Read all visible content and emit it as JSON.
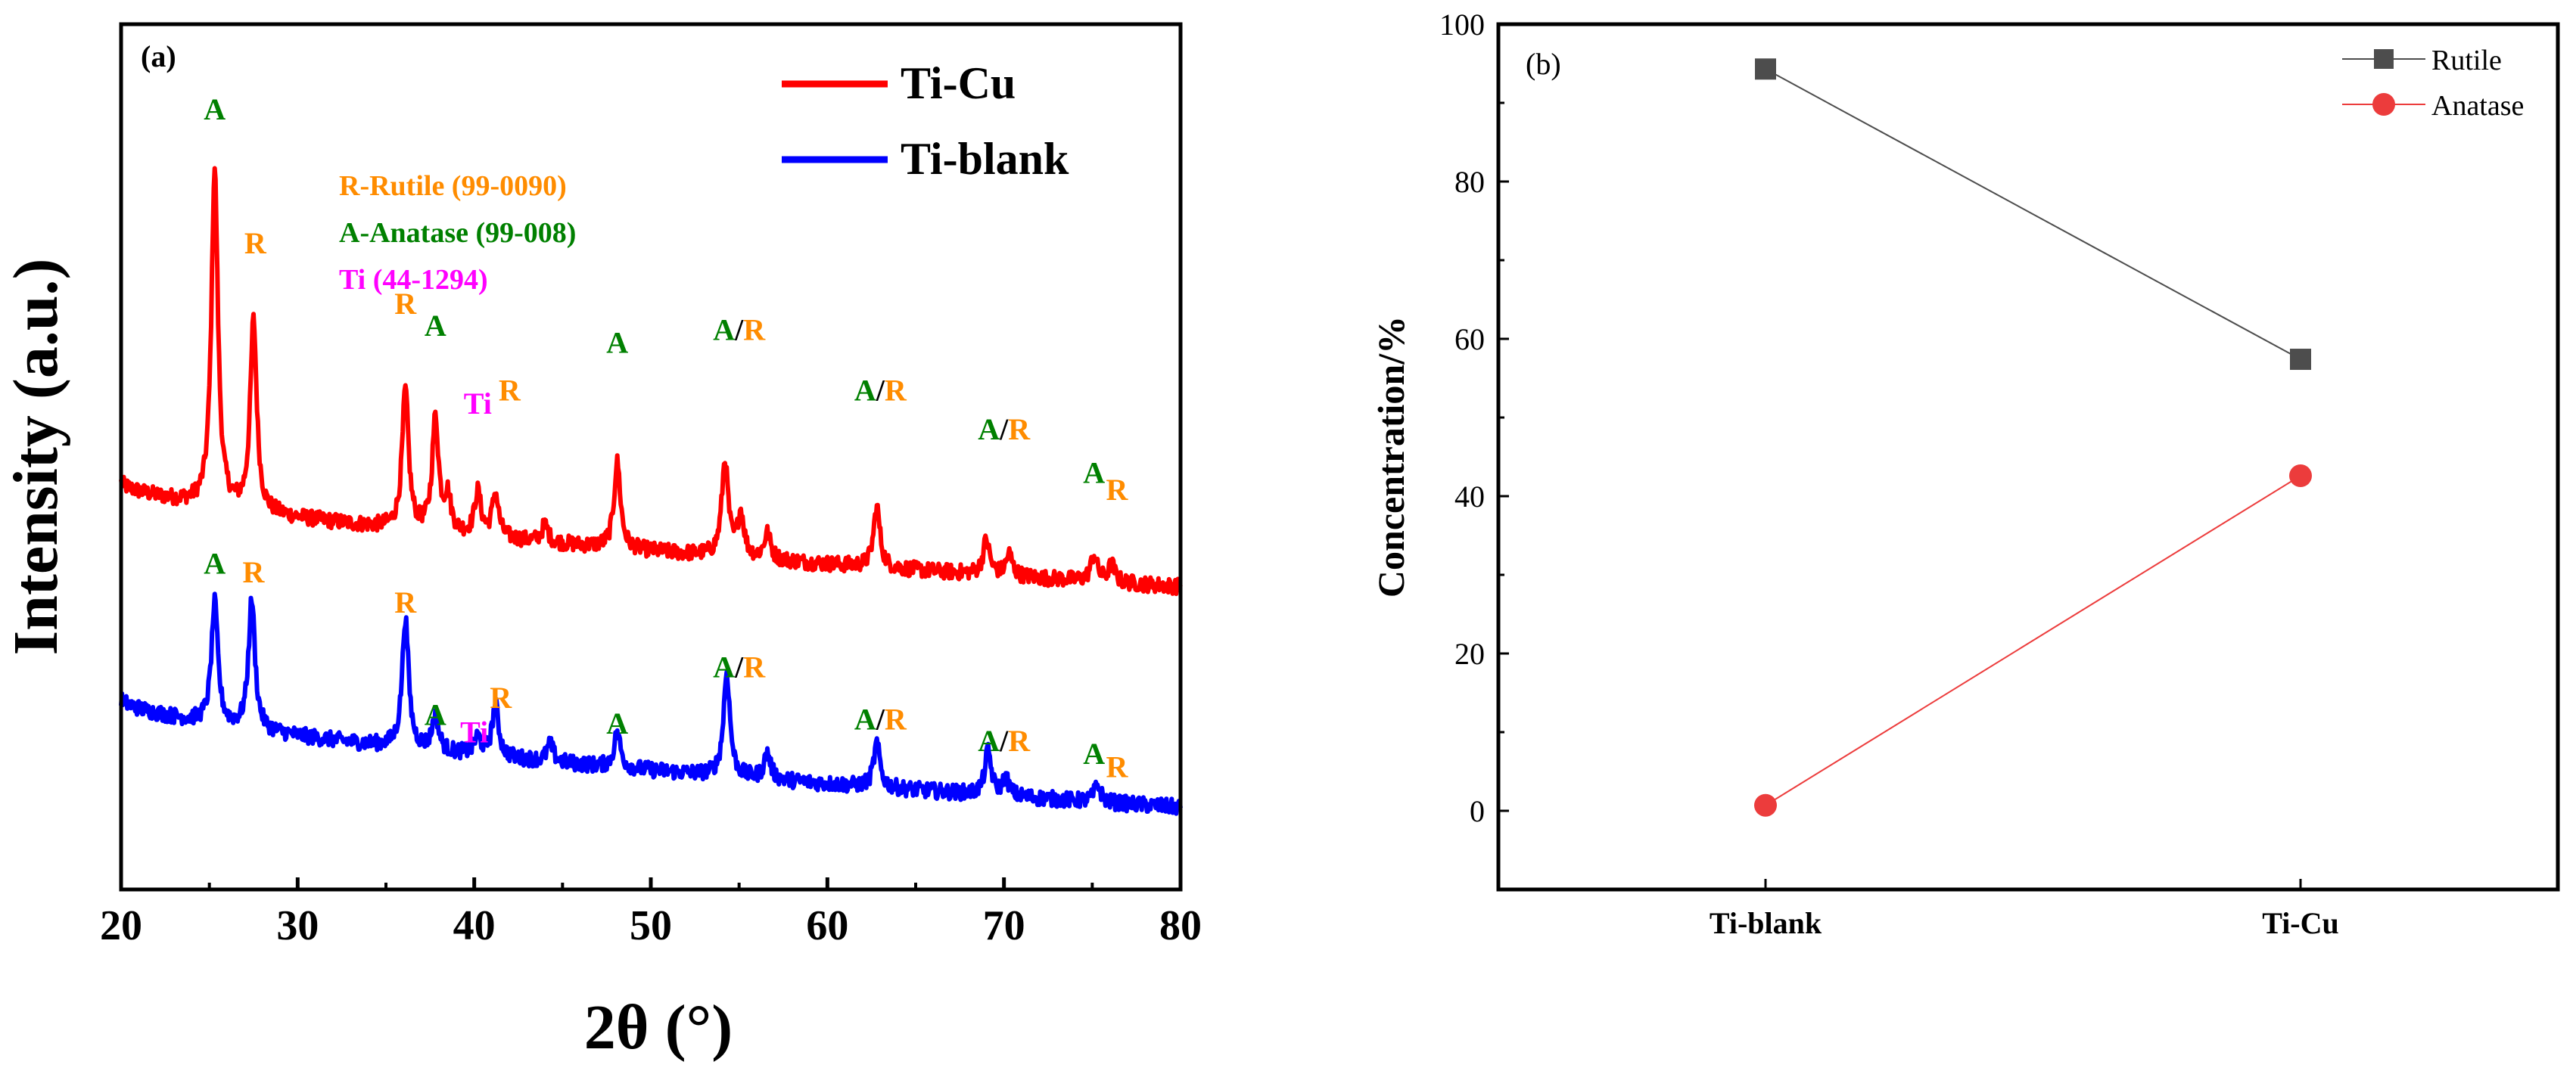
{
  "chart_data": [
    {
      "panel": "(a)",
      "type": "line",
      "xlabel": "2θ (°)",
      "ylabel": "Intensity (a.u.)",
      "xlim": [
        20,
        80
      ],
      "xticks": [
        "20",
        "30",
        "40",
        "50",
        "60",
        "70",
        "80"
      ],
      "ylim": [
        0,
        1
      ],
      "legend": "top-right",
      "series": [
        {
          "name": "Ti-Cu",
          "color": "#ff0000",
          "baseline_start": 0.47,
          "baseline_end": 0.35,
          "peaks": [
            {
              "x": 25.3,
              "height": 0.39
            },
            {
              "x": 27.5,
              "height": 0.22
            },
            {
              "x": 36.1,
              "height": 0.16
            },
            {
              "x": 37.8,
              "height": 0.13
            },
            {
              "x": 38.5,
              "height": 0.04
            },
            {
              "x": 40.2,
              "height": 0.05
            },
            {
              "x": 41.2,
              "height": 0.05
            },
            {
              "x": 44.0,
              "height": 0.02
            },
            {
              "x": 48.1,
              "height": 0.1
            },
            {
              "x": 54.2,
              "height": 0.11
            },
            {
              "x": 55.1,
              "height": 0.05
            },
            {
              "x": 56.6,
              "height": 0.03
            },
            {
              "x": 62.8,
              "height": 0.07
            },
            {
              "x": 69.0,
              "height": 0.04
            },
            {
              "x": 70.3,
              "height": 0.025
            },
            {
              "x": 75.1,
              "height": 0.03
            },
            {
              "x": 76.1,
              "height": 0.02
            }
          ]
        },
        {
          "name": "Ti-blank",
          "color": "#0000ff",
          "baseline_start": 0.22,
          "baseline_end": 0.095,
          "peaks": [
            {
              "x": 25.3,
              "height": 0.14
            },
            {
              "x": 27.4,
              "height": 0.15
            },
            {
              "x": 36.1,
              "height": 0.15
            },
            {
              "x": 37.8,
              "height": 0.04
            },
            {
              "x": 40.2,
              "height": 0.02
            },
            {
              "x": 41.2,
              "height": 0.06
            },
            {
              "x": 44.3,
              "height": 0.02
            },
            {
              "x": 48.1,
              "height": 0.04
            },
            {
              "x": 54.3,
              "height": 0.12
            },
            {
              "x": 56.6,
              "height": 0.03
            },
            {
              "x": 62.8,
              "height": 0.05
            },
            {
              "x": 69.1,
              "height": 0.05
            },
            {
              "x": 70.1,
              "height": 0.02
            },
            {
              "x": 75.3,
              "height": 0.02
            }
          ]
        }
      ],
      "reference_legend": [
        {
          "text": "R-Rutile (99-0090)",
          "color": "#ff8c00"
        },
        {
          "text": "A-Anatase (99-008)",
          "color": "#008000"
        },
        {
          "text": "Ti (44-1294)",
          "color": "#ff00ff"
        }
      ],
      "annotations": [
        {
          "series": "Ti-Cu",
          "x": 25.3,
          "y": 0.89,
          "parts": [
            {
              "t": "A",
              "c": "#008000"
            }
          ]
        },
        {
          "series": "Ti-Cu",
          "x": 27.6,
          "y": 0.735,
          "parts": [
            {
              "t": "R",
              "c": "#ff8c00"
            }
          ]
        },
        {
          "series": "Ti-Cu",
          "x": 36.1,
          "y": 0.665,
          "parts": [
            {
              "t": "R",
              "c": "#ff8c00"
            }
          ]
        },
        {
          "series": "Ti-Cu",
          "x": 37.8,
          "y": 0.64,
          "parts": [
            {
              "t": "A",
              "c": "#008000"
            }
          ]
        },
        {
          "series": "Ti-Cu",
          "x": 40.2,
          "y": 0.55,
          "parts": [
            {
              "t": "Ti",
              "c": "#ff00ff"
            }
          ]
        },
        {
          "series": "Ti-Cu",
          "x": 42.0,
          "y": 0.565,
          "parts": [
            {
              "t": "R",
              "c": "#ff8c00"
            }
          ]
        },
        {
          "series": "Ti-Cu",
          "x": 48.1,
          "y": 0.62,
          "parts": [
            {
              "t": "A",
              "c": "#008000"
            }
          ]
        },
        {
          "series": "Ti-Cu",
          "x": 55.0,
          "y": 0.635,
          "parts": [
            {
              "t": "A",
              "c": "#008000"
            },
            {
              "t": "/",
              "c": "#000000"
            },
            {
              "t": "R",
              "c": "#ff8c00"
            }
          ]
        },
        {
          "series": "Ti-Cu",
          "x": 63.0,
          "y": 0.565,
          "parts": [
            {
              "t": "A",
              "c": "#008000"
            },
            {
              "t": "/",
              "c": "#000000"
            },
            {
              "t": "R",
              "c": "#ff8c00"
            }
          ]
        },
        {
          "series": "Ti-Cu",
          "x": 70.0,
          "y": 0.52,
          "parts": [
            {
              "t": "A",
              "c": "#008000"
            },
            {
              "t": "/",
              "c": "#000000"
            },
            {
              "t": "R",
              "c": "#ff8c00"
            }
          ]
        },
        {
          "series": "Ti-Cu",
          "x": 75.1,
          "y": 0.47,
          "parts": [
            {
              "t": "A",
              "c": "#008000"
            }
          ]
        },
        {
          "series": "Ti-Cu",
          "x": 76.4,
          "y": 0.45,
          "parts": [
            {
              "t": "R",
              "c": "#ff8c00"
            }
          ]
        },
        {
          "series": "Ti-blank",
          "x": 25.3,
          "y": 0.365,
          "parts": [
            {
              "t": "A",
              "c": "#008000"
            }
          ]
        },
        {
          "series": "Ti-blank",
          "x": 27.5,
          "y": 0.355,
          "parts": [
            {
              "t": "R",
              "c": "#ff8c00"
            }
          ]
        },
        {
          "series": "Ti-blank",
          "x": 36.1,
          "y": 0.32,
          "parts": [
            {
              "t": "R",
              "c": "#ff8c00"
            }
          ]
        },
        {
          "series": "Ti-blank",
          "x": 37.8,
          "y": 0.19,
          "parts": [
            {
              "t": "A",
              "c": "#008000"
            }
          ]
        },
        {
          "series": "Ti-blank",
          "x": 40.0,
          "y": 0.17,
          "parts": [
            {
              "t": "Ti",
              "c": "#ff00ff"
            }
          ]
        },
        {
          "series": "Ti-blank",
          "x": 41.5,
          "y": 0.21,
          "parts": [
            {
              "t": "R",
              "c": "#ff8c00"
            }
          ]
        },
        {
          "series": "Ti-blank",
          "x": 48.1,
          "y": 0.18,
          "parts": [
            {
              "t": "A",
              "c": "#008000"
            }
          ]
        },
        {
          "series": "Ti-blank",
          "x": 55.0,
          "y": 0.245,
          "parts": [
            {
              "t": "A",
              "c": "#008000"
            },
            {
              "t": "/",
              "c": "#000000"
            },
            {
              "t": "R",
              "c": "#ff8c00"
            }
          ]
        },
        {
          "series": "Ti-blank",
          "x": 63.0,
          "y": 0.185,
          "parts": [
            {
              "t": "A",
              "c": "#008000"
            },
            {
              "t": "/",
              "c": "#000000"
            },
            {
              "t": "R",
              "c": "#ff8c00"
            }
          ]
        },
        {
          "series": "Ti-blank",
          "x": 70.0,
          "y": 0.16,
          "parts": [
            {
              "t": "A",
              "c": "#008000"
            },
            {
              "t": "/",
              "c": "#000000"
            },
            {
              "t": "R",
              "c": "#ff8c00"
            }
          ]
        },
        {
          "series": "Ti-blank",
          "x": 75.1,
          "y": 0.145,
          "parts": [
            {
              "t": "A",
              "c": "#008000"
            }
          ]
        },
        {
          "series": "Ti-blank",
          "x": 76.4,
          "y": 0.13,
          "parts": [
            {
              "t": "R",
              "c": "#ff8c00"
            }
          ]
        }
      ]
    },
    {
      "panel": "(b)",
      "type": "line",
      "xlabel": "",
      "ylabel": "Concentration/%",
      "categories": [
        "Ti-blank",
        "Ti-Cu"
      ],
      "ylim": [
        -10,
        100
      ],
      "yticks": [
        0,
        20,
        40,
        60,
        80,
        100
      ],
      "legend": "top-right",
      "series": [
        {
          "name": "Rutile",
          "color": "#4d4d4d",
          "marker": "square",
          "values": [
            94.3,
            57.4
          ]
        },
        {
          "name": "Anatase",
          "color": "#ec3c3c",
          "marker": "circle",
          "values": [
            0.7,
            42.6
          ]
        }
      ]
    }
  ]
}
